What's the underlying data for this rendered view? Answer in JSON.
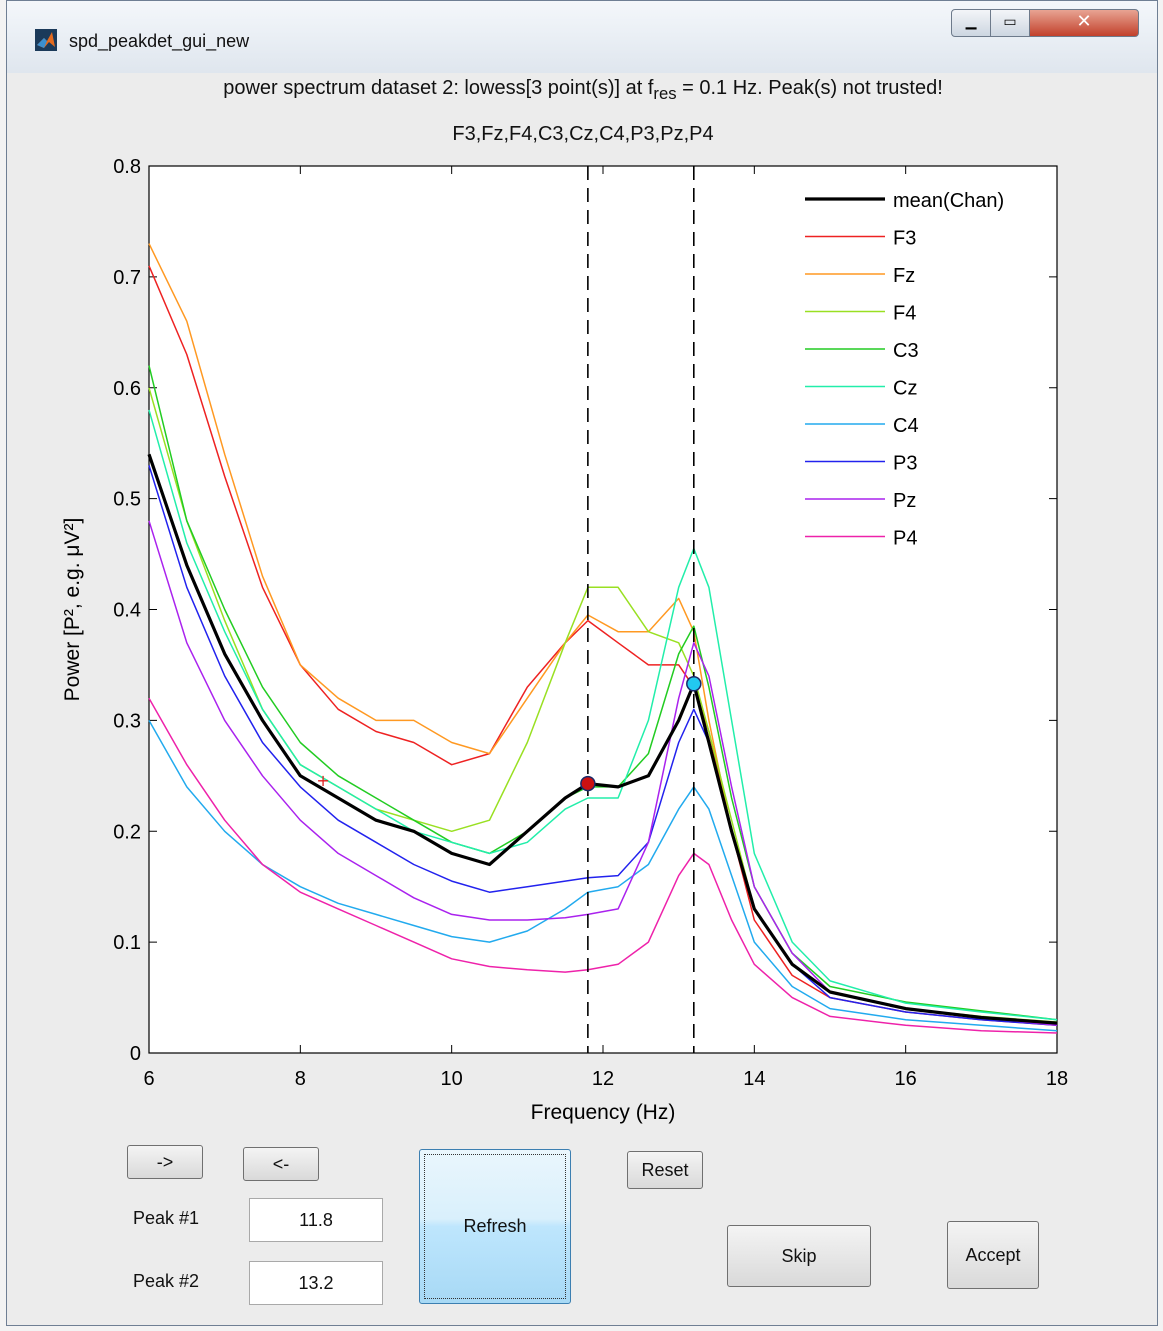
{
  "window": {
    "title": "spd_peakdet_gui_new",
    "min_glyph": "▁",
    "max_glyph": "▭",
    "close_glyph": "✕"
  },
  "figure": {
    "title_part1": "power spectrum dataset 2: lowess[3 point(s)] at f",
    "title_sub": "res",
    "title_part2": " = 0.1 Hz. Peak(s) not trusted!",
    "subtitle": "F3,Fz,F4,C3,Cz,C4,P3,Pz,P4"
  },
  "chart_data": {
    "type": "line",
    "xlabel": "Frequency (Hz)",
    "ylabel_html": "Power [P², e.g. μV²]",
    "xlim": [
      6,
      18
    ],
    "ylim": [
      0,
      0.8
    ],
    "xticks": [
      6,
      8,
      10,
      12,
      14,
      16,
      18
    ],
    "yticks": [
      0,
      0.1,
      0.2,
      0.3,
      0.4,
      0.5,
      0.6,
      0.7,
      0.8
    ],
    "legend_position": "top-right",
    "vlines": [
      11.8,
      13.2
    ],
    "markers": [
      {
        "x": 11.8,
        "y": 0.243,
        "color": "#cc1111"
      },
      {
        "x": 13.2,
        "y": 0.333,
        "color": "#22c8f0"
      },
      {
        "x": 8.3,
        "y": 0.246,
        "color": "#e02020",
        "shape": "plus"
      }
    ],
    "x": [
      6,
      6.5,
      7,
      7.5,
      8,
      8.5,
      9,
      9.5,
      10,
      10.5,
      11,
      11.5,
      11.8,
      12.2,
      12.6,
      13.0,
      13.2,
      13.4,
      13.7,
      14,
      14.5,
      15,
      16,
      17,
      18
    ],
    "series": [
      {
        "name": "mean(Chan)",
        "color": "#000000",
        "width": 3.2,
        "values": [
          0.54,
          0.44,
          0.36,
          0.3,
          0.25,
          0.23,
          0.21,
          0.2,
          0.18,
          0.17,
          0.2,
          0.23,
          0.243,
          0.24,
          0.25,
          0.3,
          0.333,
          0.28,
          0.2,
          0.13,
          0.08,
          0.055,
          0.04,
          0.032,
          0.027
        ]
      },
      {
        "name": "F3",
        "color": "#ee2222",
        "width": 1.5,
        "values": [
          0.71,
          0.63,
          0.52,
          0.42,
          0.35,
          0.31,
          0.29,
          0.28,
          0.26,
          0.27,
          0.33,
          0.37,
          0.39,
          0.37,
          0.35,
          0.35,
          0.33,
          0.29,
          0.2,
          0.12,
          0.07,
          0.05,
          0.037,
          0.03,
          0.025
        ]
      },
      {
        "name": "Fz",
        "color": "#ff9922",
        "width": 1.5,
        "values": [
          0.73,
          0.66,
          0.54,
          0.43,
          0.35,
          0.32,
          0.3,
          0.3,
          0.28,
          0.27,
          0.32,
          0.37,
          0.395,
          0.38,
          0.38,
          0.41,
          0.38,
          0.3,
          0.2,
          0.13,
          0.08,
          0.055,
          0.04,
          0.032,
          0.027
        ]
      },
      {
        "name": "F4",
        "color": "#99e022",
        "width": 1.5,
        "values": [
          0.6,
          0.48,
          0.39,
          0.31,
          0.26,
          0.24,
          0.22,
          0.21,
          0.2,
          0.21,
          0.28,
          0.37,
          0.42,
          0.42,
          0.38,
          0.37,
          0.34,
          0.29,
          0.21,
          0.13,
          0.08,
          0.055,
          0.04,
          0.033,
          0.028
        ]
      },
      {
        "name": "C3",
        "color": "#22cc22",
        "width": 1.5,
        "values": [
          0.62,
          0.48,
          0.4,
          0.33,
          0.28,
          0.25,
          0.23,
          0.21,
          0.19,
          0.18,
          0.2,
          0.23,
          0.24,
          0.24,
          0.27,
          0.36,
          0.385,
          0.33,
          0.23,
          0.15,
          0.09,
          0.06,
          0.046,
          0.038,
          0.03
        ]
      },
      {
        "name": "Cz",
        "color": "#22eeaa",
        "width": 1.5,
        "values": [
          0.58,
          0.46,
          0.38,
          0.31,
          0.26,
          0.24,
          0.22,
          0.2,
          0.19,
          0.18,
          0.19,
          0.22,
          0.23,
          0.23,
          0.3,
          0.42,
          0.455,
          0.42,
          0.3,
          0.18,
          0.1,
          0.065,
          0.045,
          0.037,
          0.03
        ]
      },
      {
        "name": "C4",
        "color": "#22aaee",
        "width": 1.5,
        "values": [
          0.3,
          0.24,
          0.2,
          0.17,
          0.15,
          0.135,
          0.125,
          0.115,
          0.105,
          0.1,
          0.11,
          0.13,
          0.145,
          0.15,
          0.17,
          0.22,
          0.24,
          0.22,
          0.16,
          0.1,
          0.06,
          0.04,
          0.03,
          0.025,
          0.02
        ]
      },
      {
        "name": "P3",
        "color": "#2222ee",
        "width": 1.5,
        "values": [
          0.53,
          0.42,
          0.34,
          0.28,
          0.24,
          0.21,
          0.19,
          0.17,
          0.155,
          0.145,
          0.15,
          0.155,
          0.158,
          0.16,
          0.19,
          0.28,
          0.31,
          0.28,
          0.2,
          0.13,
          0.08,
          0.05,
          0.037,
          0.03,
          0.025
        ]
      },
      {
        "name": "Pz",
        "color": "#aa22ee",
        "width": 1.5,
        "values": [
          0.48,
          0.37,
          0.3,
          0.25,
          0.21,
          0.18,
          0.16,
          0.14,
          0.125,
          0.12,
          0.12,
          0.122,
          0.125,
          0.13,
          0.19,
          0.32,
          0.37,
          0.34,
          0.24,
          0.15,
          0.09,
          0.055,
          0.04,
          0.032,
          0.025
        ]
      },
      {
        "name": "P4",
        "color": "#ee22aa",
        "width": 1.5,
        "values": [
          0.32,
          0.26,
          0.21,
          0.17,
          0.145,
          0.13,
          0.115,
          0.1,
          0.085,
          0.078,
          0.075,
          0.073,
          0.075,
          0.08,
          0.1,
          0.16,
          0.18,
          0.17,
          0.12,
          0.08,
          0.05,
          0.033,
          0.025,
          0.02,
          0.018
        ]
      }
    ]
  },
  "controls": {
    "next_label": "->",
    "prev_label": "<-",
    "reset_label": "Reset",
    "refresh_label": "Refresh",
    "skip_label": "Skip",
    "accept_label": "Accept",
    "peak1_label": "Peak #1",
    "peak1_value": "11.8",
    "peak2_label": "Peak #2",
    "peak2_value": "13.2"
  }
}
